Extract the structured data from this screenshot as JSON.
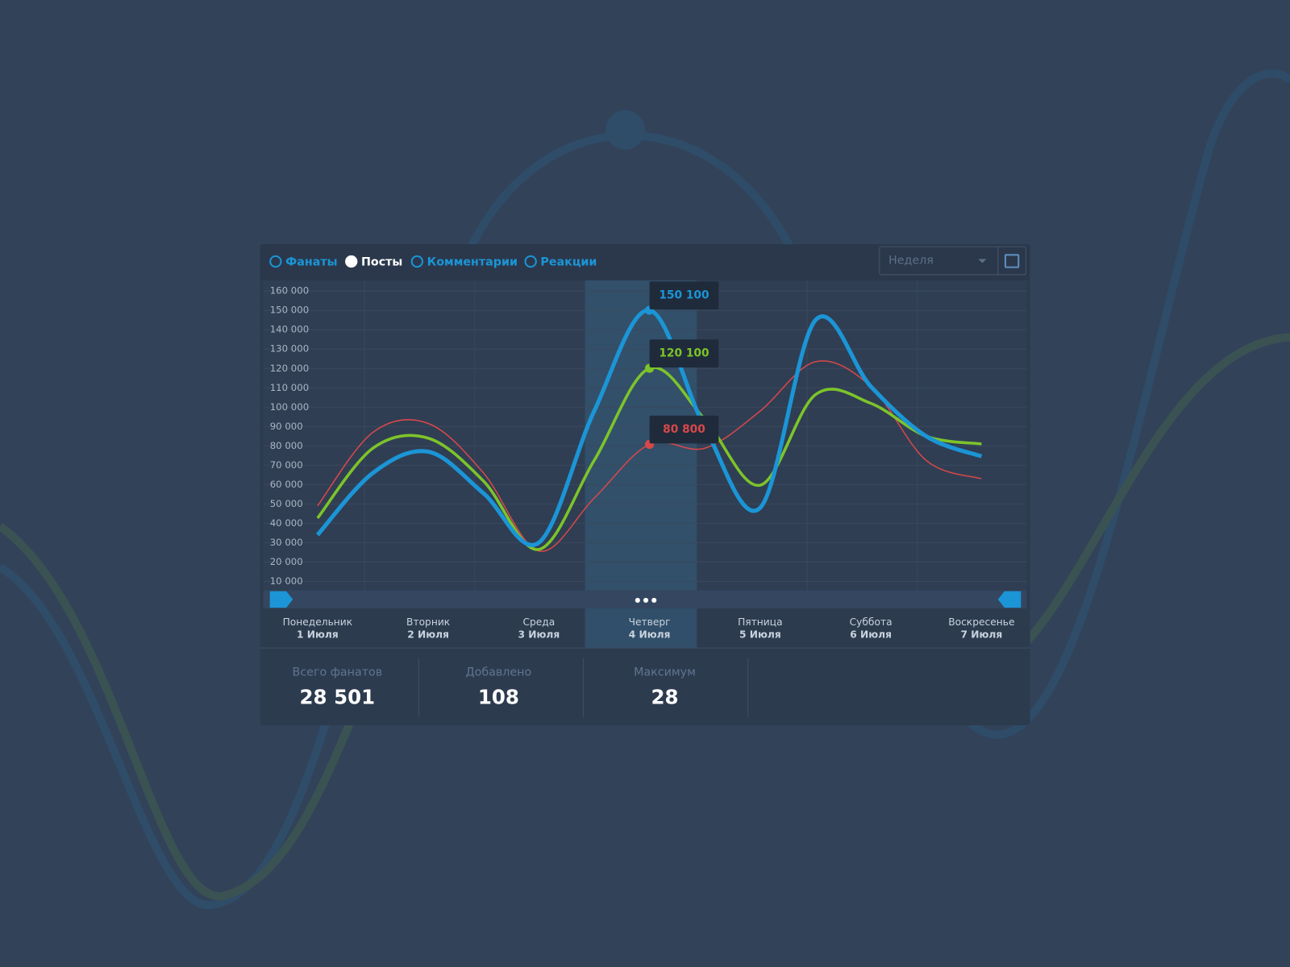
{
  "tabs": [
    {
      "label": "Фанаты",
      "selected": false
    },
    {
      "label": "Посты",
      "selected": true
    },
    {
      "label": "Комментарии",
      "selected": false
    },
    {
      "label": "Реакции",
      "selected": false
    }
  ],
  "dropdown": {
    "label": "Неделя"
  },
  "stats": [
    {
      "label": "Всего фанатов",
      "value": "28 501"
    },
    {
      "label": "Добавлено",
      "value": "108"
    },
    {
      "label": "Максимум",
      "value": "28"
    }
  ],
  "chart_data": {
    "type": "line",
    "categories": [
      "Понедельник",
      null,
      "Вторник",
      null,
      "Среда",
      null,
      "Четверг",
      null,
      "Пятница",
      null,
      "Суббота",
      null,
      "Воскресенье"
    ],
    "dates": [
      "1 Июля",
      null,
      "2 Июля",
      null,
      "3 Июля",
      null,
      "4 Июля",
      null,
      "5 Июля",
      null,
      "6 Июля",
      null,
      "7 Июля"
    ],
    "highlight_index": 6,
    "ylim": [
      5000,
      165000
    ],
    "yticks": [
      {
        "value": 10000,
        "label": "10 000"
      },
      {
        "value": 20000,
        "label": "20 000"
      },
      {
        "value": 30000,
        "label": "30 000"
      },
      {
        "value": 40000,
        "label": "40 000"
      },
      {
        "value": 50000,
        "label": "50 000"
      },
      {
        "value": 60000,
        "label": "60 000"
      },
      {
        "value": 70000,
        "label": "70 000"
      },
      {
        "value": 80000,
        "label": "80 000"
      },
      {
        "value": 90000,
        "label": "90 000"
      },
      {
        "value": 100000,
        "label": "100 000"
      },
      {
        "value": 110000,
        "label": "110 000"
      },
      {
        "value": 120000,
        "label": "120 000"
      },
      {
        "value": 130000,
        "label": "130 000"
      },
      {
        "value": 140000,
        "label": "140 000"
      },
      {
        "value": 150000,
        "label": "150 000"
      },
      {
        "value": 160000,
        "label": "160 000"
      }
    ],
    "grid": true,
    "series": [
      {
        "color": "#d8484a",
        "width": 1.5,
        "values": [
          49000,
          87000,
          91600,
          66000,
          25700,
          53000,
          80800,
          78800,
          98000,
          123500,
          110700,
          72500,
          63000
        ],
        "value_labels": [
          null,
          null,
          null,
          null,
          null,
          null,
          "80 800",
          null,
          null,
          null,
          null,
          null,
          null
        ]
      },
      {
        "color": "#7dc42a",
        "width": 3.5,
        "values": [
          42700,
          78800,
          84000,
          61800,
          26500,
          72500,
          120100,
          93700,
          59700,
          106500,
          102000,
          85000,
          81000
        ],
        "value_labels": [
          null,
          null,
          null,
          null,
          null,
          null,
          "120 100",
          null,
          null,
          null,
          null,
          null,
          null
        ]
      },
      {
        "color": "#1b95d6",
        "width": 5,
        "values": [
          34000,
          66000,
          77000,
          55500,
          30000,
          98000,
          150100,
          89500,
          48000,
          145000,
          110700,
          85000,
          74600
        ],
        "value_labels": [
          null,
          null,
          null,
          null,
          null,
          null,
          "150 100",
          null,
          null,
          null,
          null,
          null,
          null
        ]
      }
    ]
  }
}
